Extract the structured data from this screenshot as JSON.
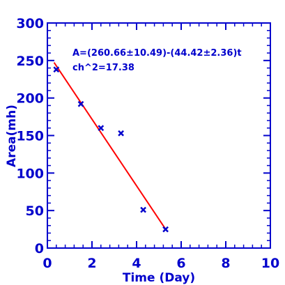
{
  "chart_data": {
    "type": "scatter",
    "xlabel": "Time (Day)",
    "ylabel": "Area(mh)",
    "xlim": [
      0,
      10
    ],
    "ylim": [
      0,
      300
    ],
    "x_ticks": [
      0,
      2,
      4,
      6,
      8,
      10
    ],
    "y_ticks": [
      0,
      50,
      100,
      150,
      200,
      250,
      300
    ],
    "x_tick_labels": [
      "0",
      "2",
      "4",
      "6",
      "8",
      "10"
    ],
    "y_tick_labels": [
      "0",
      "50",
      "100",
      "150",
      "200",
      "250",
      "300"
    ],
    "grid": false,
    "series": [
      {
        "type": "scatter",
        "marker": "x",
        "x": [
          0.4,
          1.5,
          2.4,
          3.3,
          4.3,
          5.3
        ],
        "y": [
          238,
          192,
          160,
          153,
          51,
          25
        ]
      },
      {
        "type": "line",
        "x": [
          0.3,
          5.3
        ],
        "y": [
          247.3,
          25.2
        ]
      }
    ],
    "annotations": [
      "A=(260.66±10.49)-(44.42±2.36)t",
      "ch^2=17.38"
    ],
    "colors": {
      "axes": "#0000cc",
      "markers": "#0000cc",
      "fit_line": "#ff0000"
    }
  }
}
